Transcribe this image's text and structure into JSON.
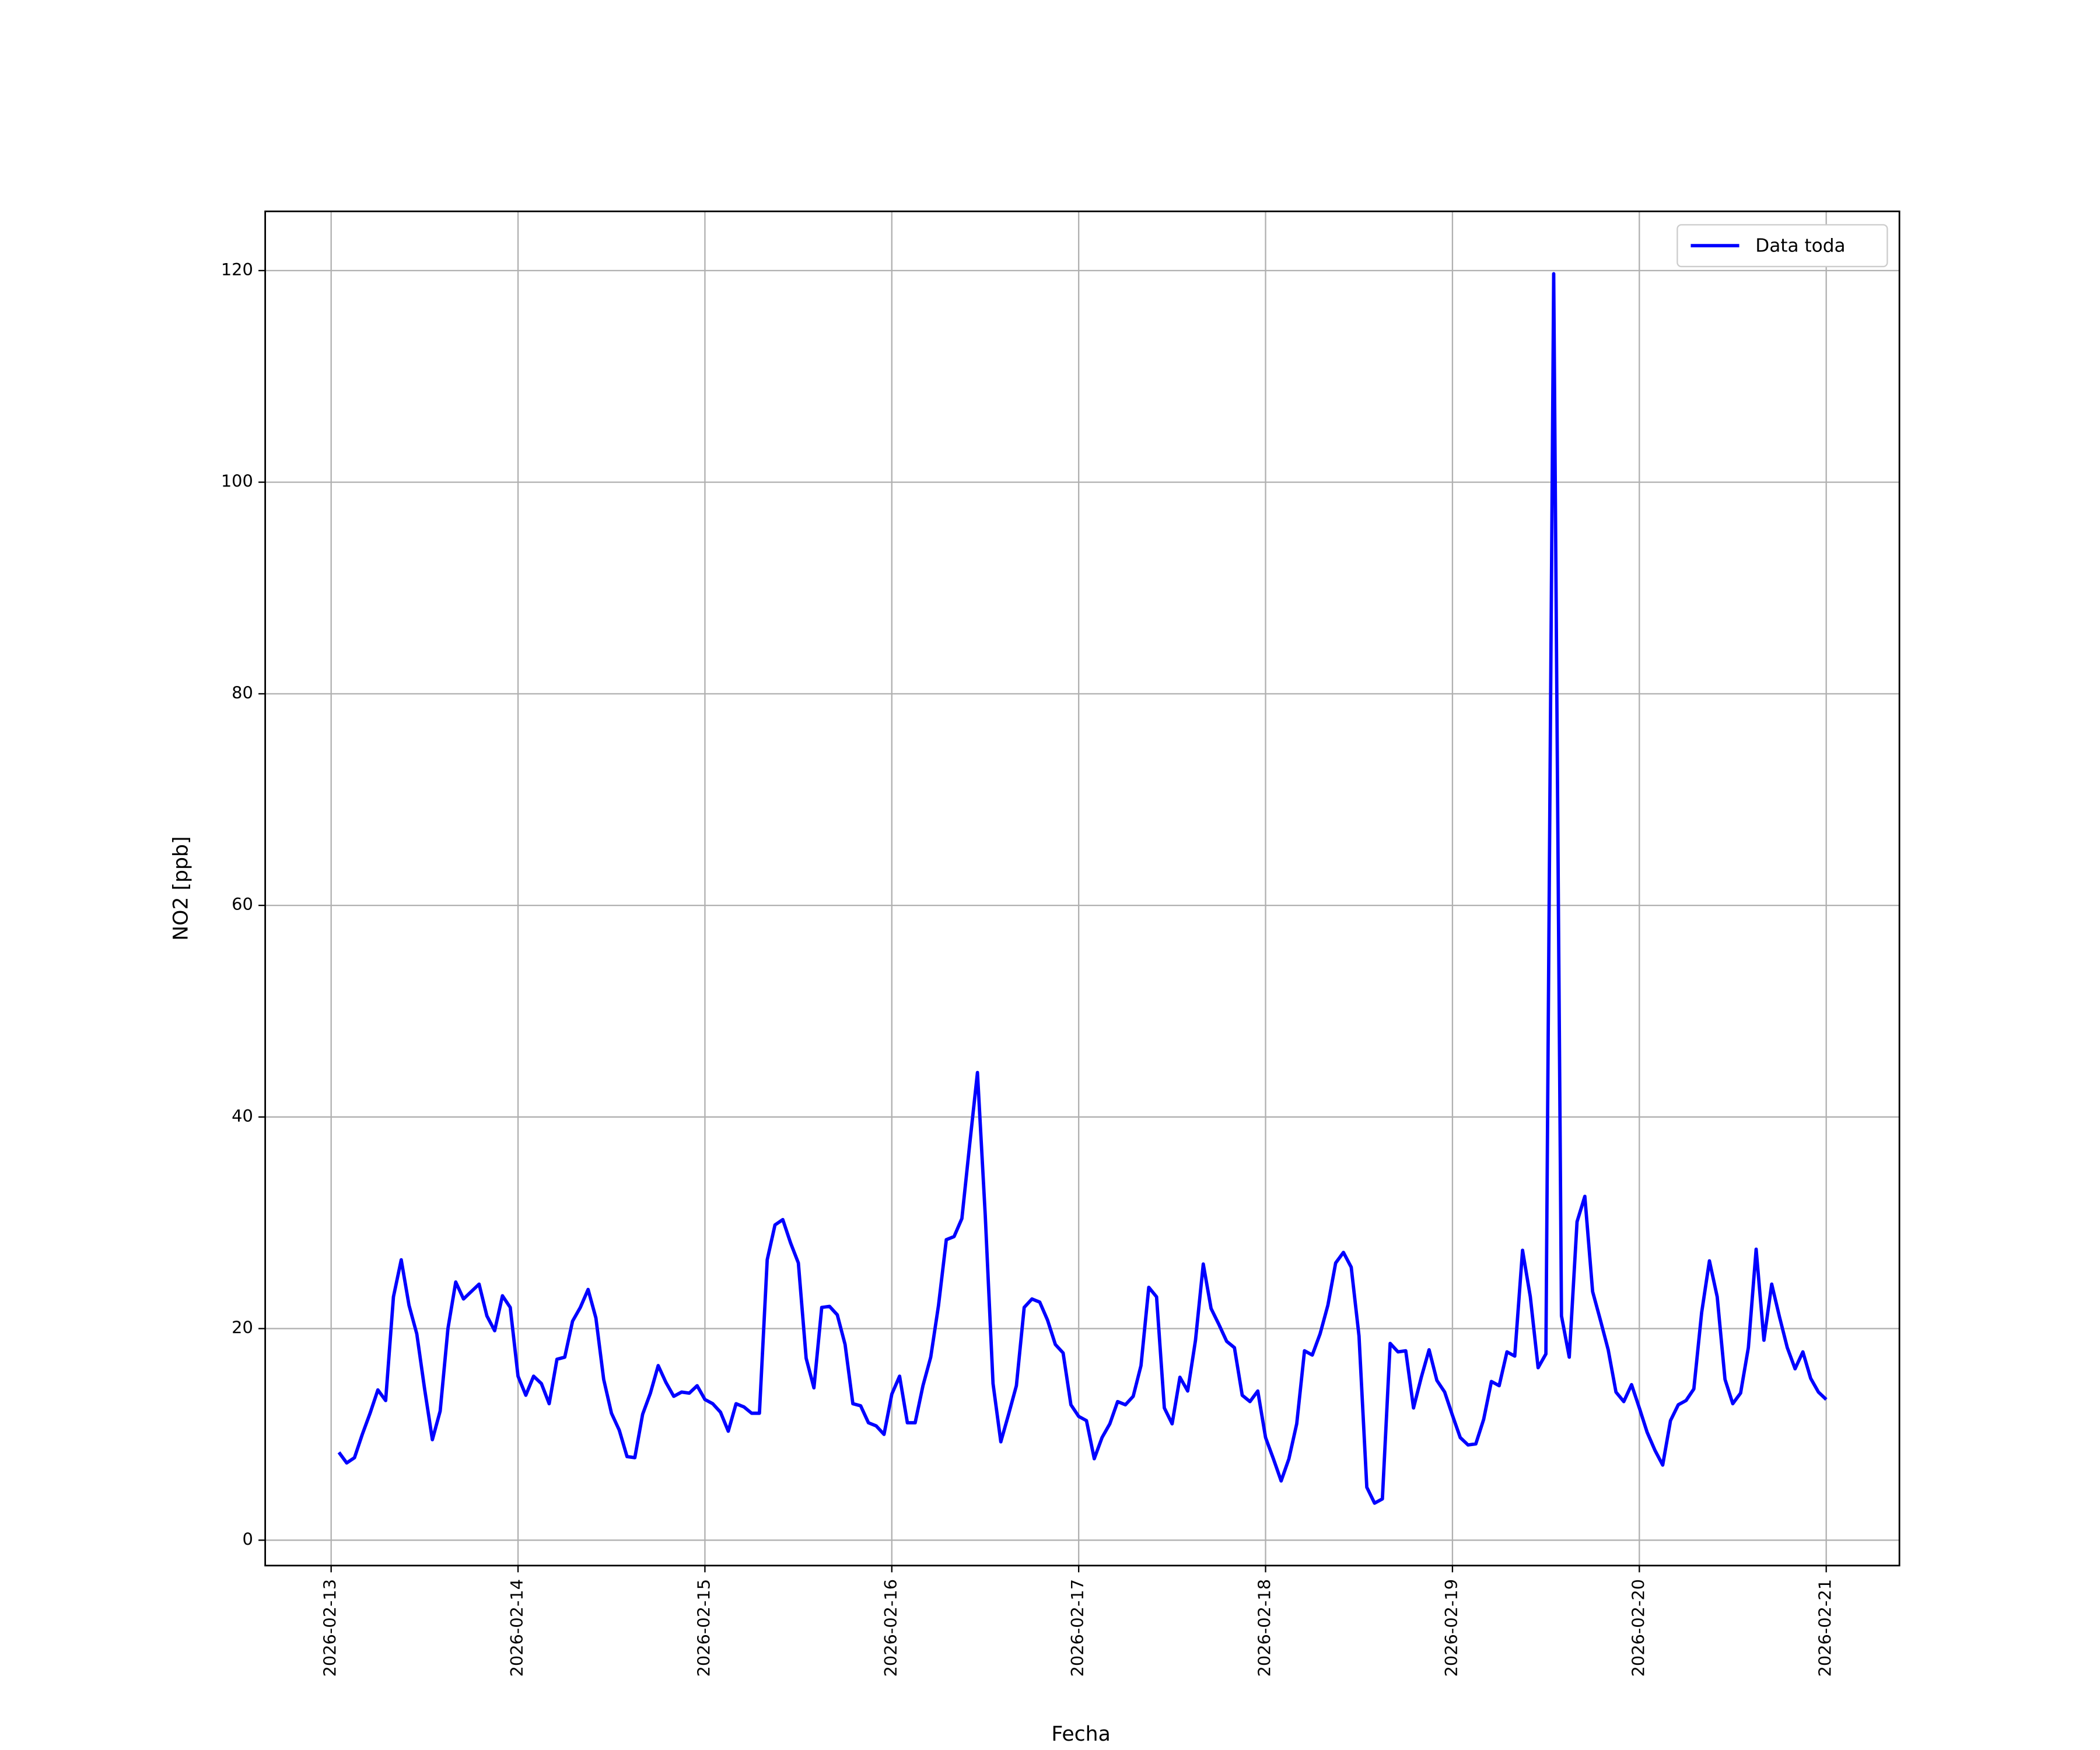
{
  "chart_data": {
    "type": "line",
    "x_label": "Fecha",
    "y_label": "NO2 [ppb]",
    "x": [
      1,
      2,
      3,
      4,
      5,
      6,
      7,
      8,
      9,
      10,
      11,
      12,
      13,
      14,
      15,
      16,
      17,
      18,
      19,
      20,
      21,
      22,
      23,
      24,
      25,
      26,
      27,
      28,
      29,
      30,
      31,
      32,
      33,
      34,
      35,
      36,
      37,
      38,
      39,
      40,
      41,
      42,
      43,
      44,
      45,
      46,
      47,
      48,
      49,
      50,
      51,
      52,
      53,
      54,
      55,
      56,
      57,
      58,
      59,
      60,
      61,
      62,
      63,
      64,
      65,
      66,
      67,
      68,
      69,
      70,
      71,
      72,
      73,
      74,
      75,
      76,
      77,
      78,
      79,
      80,
      81,
      82,
      83,
      84,
      85,
      86,
      87,
      88,
      89,
      90,
      91,
      92,
      93,
      94,
      95,
      96,
      97,
      98,
      99,
      100,
      101,
      102,
      103,
      104,
      105,
      106,
      107,
      108,
      109,
      110,
      111,
      112,
      113,
      114,
      115,
      116,
      117,
      118,
      119,
      120,
      121,
      122,
      123,
      124,
      125,
      126,
      127,
      128,
      129,
      130,
      131,
      132,
      133,
      134,
      135,
      136,
      137,
      138,
      139,
      140,
      141,
      142,
      143,
      144,
      145,
      146,
      147,
      148,
      149,
      150,
      151,
      152,
      153,
      154,
      155,
      156,
      157,
      158,
      159,
      160,
      161,
      162,
      163,
      164,
      165,
      166,
      167,
      168,
      169,
      170,
      171,
      172,
      173,
      174,
      175,
      176,
      177,
      178,
      179,
      180,
      181,
      182,
      183,
      184,
      185,
      186,
      187,
      188,
      189,
      190,
      191,
      192
    ],
    "series": [
      {
        "name": "Data toda",
        "color": "#0000ff",
        "values": [
          8.3,
          7.3,
          7.8,
          10,
          12,
          14.2,
          13.2,
          23,
          26.5,
          22.2,
          19.5,
          14.3,
          9.5,
          12.2,
          20,
          24.4,
          22.8,
          23.5,
          24.2,
          21.2,
          19.8,
          23.1,
          22,
          15.5,
          13.7,
          15.5,
          14.8,
          12.9,
          17.1,
          17.3,
          20.7,
          22,
          23.7,
          21,
          15.2,
          12,
          10.4,
          7.9,
          7.8,
          11.9,
          13.9,
          16.5,
          14.9,
          13.6,
          14,
          13.9,
          14.6,
          13.3,
          12.9,
          12.1,
          10.3,
          12.9,
          12.6,
          12,
          12,
          26.5,
          29.8,
          30.3,
          28.1,
          26.2,
          17.2,
          14.4,
          22,
          22.1,
          21.3,
          18.5,
          12.9,
          12.7,
          11.1,
          10.8,
          10,
          13.8,
          15.5,
          11.1,
          11.1,
          14.6,
          17.3,
          22.2,
          28.4,
          28.7,
          30.4,
          37.4,
          44.2,
          30.7,
          14.8,
          9.3,
          11.9,
          14.6,
          22,
          22.8,
          22.5,
          20.8,
          18.5,
          17.7,
          12.8,
          11.7,
          11.3,
          7.7,
          9.7,
          11,
          13.1,
          12.8,
          13.6,
          16.5,
          23.9,
          23,
          12.5,
          11,
          15.4,
          14.1,
          18.9,
          26.1,
          21.9,
          20.4,
          18.8,
          18.2,
          13.7,
          13.1,
          14.1,
          9.7,
          7.7,
          5.6,
          7.7,
          11,
          17.9,
          17.5,
          19.5,
          22.2,
          26.2,
          27.2,
          25.8,
          19.3,
          5,
          3.5,
          3.9,
          18.6,
          17.8,
          17.9,
          12.5,
          15.4,
          18,
          15.1,
          14,
          11.8,
          9.7,
          9,
          9.1,
          11.4,
          15,
          14.6,
          17.8,
          17.4,
          27.4,
          23,
          16.3,
          17.6,
          119.7,
          21.2,
          17.3,
          30.1,
          32.5,
          23.5,
          20.8,
          18,
          14,
          13.1,
          14.7,
          12.5,
          10.2,
          8.5,
          7.1,
          11.3,
          12.8,
          13.2,
          14.3,
          21.5,
          26.4,
          23,
          15.2,
          12.9,
          13.9,
          18.2,
          27.5,
          18.9,
          24.2,
          21.1,
          18.2,
          16.2,
          17.8,
          15.3,
          14,
          13.3
        ]
      }
    ],
    "xlim": [
      -8.47,
      201.4
    ],
    "xticks": [
      {
        "value": 0,
        "label": "2026-02-13"
      },
      {
        "value": 24,
        "label": "2026-02-14"
      },
      {
        "value": 48,
        "label": "2026-02-15"
      },
      {
        "value": 72,
        "label": "2026-02-16"
      },
      {
        "value": 96,
        "label": "2026-02-17"
      },
      {
        "value": 120,
        "label": "2026-02-18"
      },
      {
        "value": 144,
        "label": "2026-02-19"
      },
      {
        "value": 168,
        "label": "2026-02-20"
      },
      {
        "value": 192,
        "label": "2026-02-21"
      }
    ],
    "ylim": [
      -2.4,
      125.6
    ],
    "yticks": [
      0,
      20,
      40,
      60,
      80,
      100,
      120
    ],
    "grid": true,
    "legend": "upper right"
  }
}
